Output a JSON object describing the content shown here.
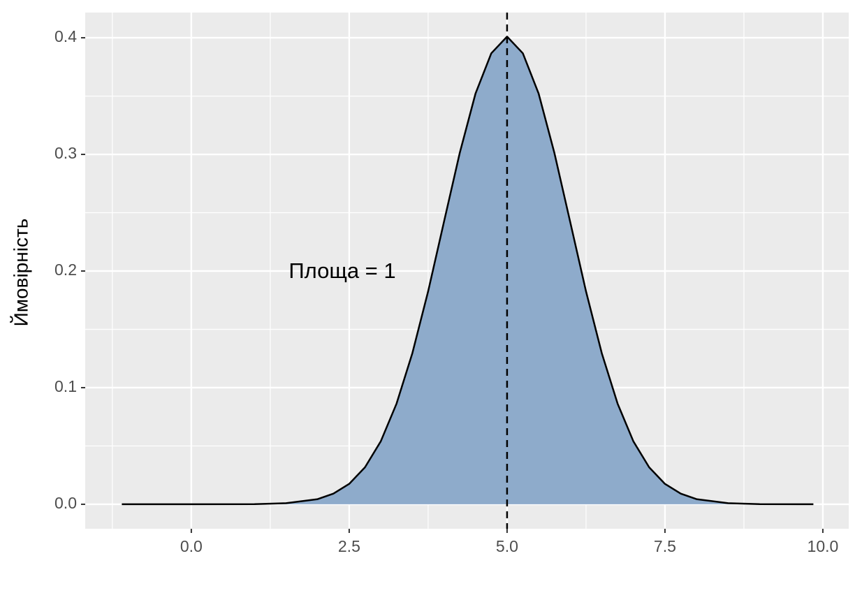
{
  "chart_data": {
    "type": "area",
    "ylabel": "Ймовірність",
    "annotation": "Площа = 1",
    "x": [
      -1.1,
      0,
      1,
      1.5,
      2,
      2.25,
      2.5,
      2.75,
      3,
      3.25,
      3.5,
      3.75,
      4,
      4.25,
      4.5,
      4.75,
      5,
      5.25,
      5.5,
      5.75,
      6,
      6.25,
      6.5,
      6.75,
      7,
      7.25,
      7.5,
      7.75,
      8,
      8.5,
      9,
      9.85
    ],
    "values": [
      0,
      0,
      0.0001,
      0.0009,
      0.0044,
      0.0091,
      0.0175,
      0.0317,
      0.054,
      0.0863,
      0.1295,
      0.1826,
      0.242,
      0.3011,
      0.3521,
      0.3867,
      0.401,
      0.3867,
      0.3521,
      0.3011,
      0.242,
      0.1826,
      0.1295,
      0.0863,
      0.054,
      0.0317,
      0.0175,
      0.0091,
      0.0044,
      0.0009,
      0.0001,
      0
    ],
    "color": "#8eabcb",
    "vline": 5,
    "xlim": [
      -1.68,
      10.41
    ],
    "ylim": [
      -0.021,
      0.4216
    ],
    "xticks": [
      {
        "value": 0,
        "label": "0.0"
      },
      2.5,
      {
        "value": 5,
        "label": "5.0"
      },
      7.5,
      {
        "value": 10,
        "label": "10.0"
      }
    ],
    "yticks": [
      {
        "value": 0,
        "label": "0.0"
      },
      0.1,
      0.2,
      0.3,
      0.4
    ],
    "grid": true
  }
}
